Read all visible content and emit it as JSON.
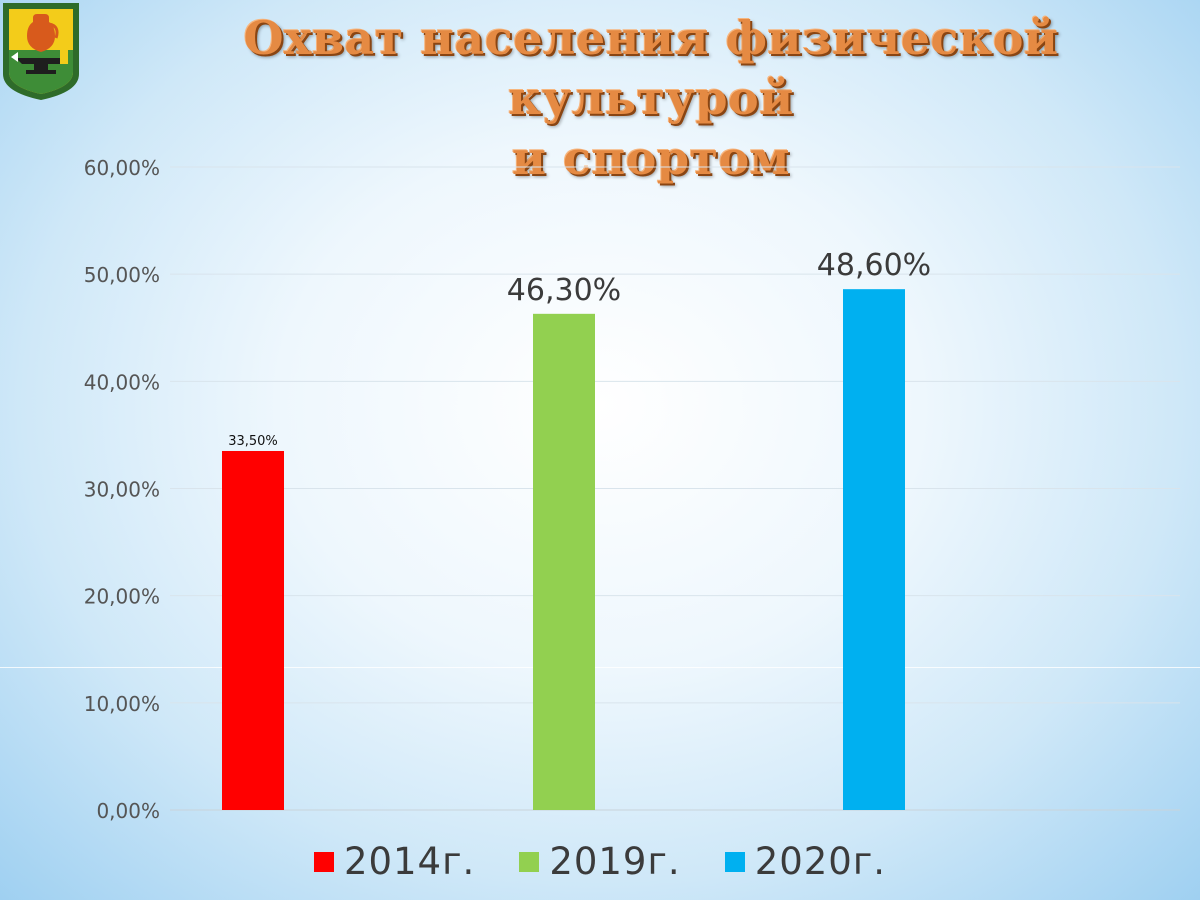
{
  "slide": {
    "title_line1": "Охват населения физической культурой",
    "title_line2": "и спортом",
    "emblem": "coat-of-arms-icon"
  },
  "colors": {
    "title": "#e58a43",
    "grid": "#d9e4ec",
    "axis_text": "#555555",
    "series": [
      "#ff0000",
      "#92d050",
      "#00b0f0"
    ]
  },
  "chart_data": {
    "type": "bar",
    "title": "Охват населения физической культурой и спортом",
    "categories": [
      "2014г.",
      "2019г.",
      "2020г."
    ],
    "values": [
      33.5,
      46.3,
      48.6
    ],
    "data_labels": [
      "33,50%",
      "46,30%",
      "48,60%"
    ],
    "ylim": [
      0,
      60
    ],
    "yticks": [
      0,
      10,
      20,
      30,
      40,
      50,
      60
    ],
    "ytick_labels": [
      "0,00%",
      "10,00%",
      "20,00%",
      "30,00%",
      "40,00%",
      "50,00%",
      "60,00%"
    ],
    "xlabel": "",
    "ylabel": "",
    "grid": true,
    "legend_position": "bottom"
  },
  "legend": {
    "items": [
      {
        "label": "2014г.",
        "color": "#ff0000"
      },
      {
        "label": "2019г.",
        "color": "#92d050"
      },
      {
        "label": "2020г.",
        "color": "#00b0f0"
      }
    ]
  }
}
